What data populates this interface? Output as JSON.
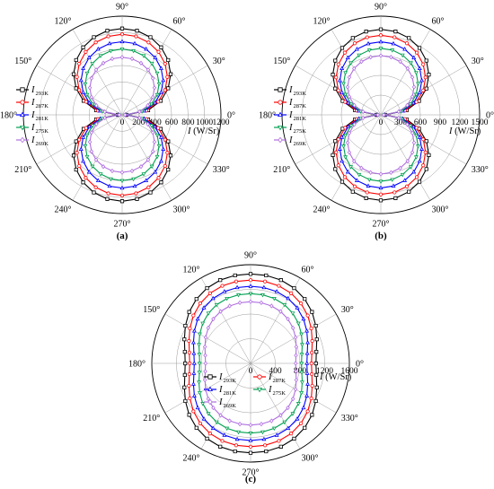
{
  "chart_data": [
    {
      "type": "polar-line",
      "panel_label": "(a)",
      "axis_label": "I (W/Sr)",
      "axis_label_parts": {
        "var": "I",
        "unit": " (W/Sr)"
      },
      "rlim": [
        0,
        1200
      ],
      "r_ticks": [
        0,
        200,
        400,
        600,
        800,
        1000,
        1200
      ],
      "angle_ticks": [
        0,
        30,
        60,
        90,
        120,
        150,
        180,
        210,
        240,
        270,
        300,
        330
      ],
      "angle_tick_labels": [
        "0°",
        "30°",
        "60°",
        "90°",
        "120°",
        "150°",
        "180°",
        "210°",
        "240°",
        "270°",
        "300°",
        "330°"
      ],
      "grid": true,
      "legend_position": "left",
      "series": [
        {
          "name": "I 293K",
          "name_parts": {
            "var": "I",
            "sub": "293K"
          },
          "color": "#000000",
          "marker": "square",
          "peak": 1050,
          "shape": "dipole"
        },
        {
          "name": "I 287K",
          "name_parts": {
            "var": "I",
            "sub": "287K"
          },
          "color": "#ff0000",
          "marker": "circle",
          "peak": 980,
          "shape": "dipole"
        },
        {
          "name": "I 281K",
          "name_parts": {
            "var": "I",
            "sub": "281K"
          },
          "color": "#0000ff",
          "marker": "triangle",
          "peak": 890,
          "shape": "dipole"
        },
        {
          "name": "I 275K",
          "name_parts": {
            "var": "I",
            "sub": "275K"
          },
          "color": "#00a050",
          "marker": "triangle-down",
          "peak": 800,
          "shape": "dipole"
        },
        {
          "name": "I 269K",
          "name_parts": {
            "var": "I",
            "sub": "269K"
          },
          "color": "#b070e0",
          "marker": "diamond",
          "peak": 700,
          "shape": "dipole"
        }
      ]
    },
    {
      "type": "polar-line",
      "panel_label": "(b)",
      "axis_label": "I (W/Sr)",
      "axis_label_parts": {
        "var": "I",
        "unit": " (W/Sr)"
      },
      "rlim": [
        0,
        1500
      ],
      "r_ticks": [
        0,
        300,
        600,
        900,
        1200,
        1500
      ],
      "angle_ticks": [
        0,
        30,
        60,
        90,
        120,
        150,
        180,
        210,
        240,
        270,
        300,
        330
      ],
      "angle_tick_labels": [
        "0°",
        "30°",
        "60°",
        "90°",
        "120°",
        "150°",
        "180°",
        "210°",
        "240°",
        "270°",
        "300°",
        "330°"
      ],
      "grid": true,
      "legend_position": "left",
      "series": [
        {
          "name": "I 293K",
          "name_parts": {
            "var": "I",
            "sub": "293K"
          },
          "color": "#000000",
          "marker": "square",
          "peak": 1300,
          "shape": "dipole"
        },
        {
          "name": "I 287K",
          "name_parts": {
            "var": "I",
            "sub": "287K"
          },
          "color": "#ff0000",
          "marker": "circle",
          "peak": 1210,
          "shape": "dipole"
        },
        {
          "name": "I 281K",
          "name_parts": {
            "var": "I",
            "sub": "281K"
          },
          "color": "#0000ff",
          "marker": "triangle",
          "peak": 1110,
          "shape": "dipole"
        },
        {
          "name": "I 275K",
          "name_parts": {
            "var": "I",
            "sub": "275K"
          },
          "color": "#00a050",
          "marker": "triangle-down",
          "peak": 1010,
          "shape": "dipole"
        },
        {
          "name": "I 269K",
          "name_parts": {
            "var": "I",
            "sub": "269K"
          },
          "color": "#b070e0",
          "marker": "diamond",
          "peak": 900,
          "shape": "dipole"
        }
      ]
    },
    {
      "type": "polar-line",
      "panel_label": "(c)",
      "axis_label": "I (W/Sr)",
      "axis_label_parts": {
        "var": "I",
        "unit": " (W/Sr)"
      },
      "rlim": [
        0,
        1600
      ],
      "r_ticks": [
        0,
        400,
        800,
        1200,
        1600
      ],
      "angle_ticks": [
        0,
        30,
        60,
        90,
        120,
        150,
        180,
        210,
        240,
        270,
        300,
        330
      ],
      "angle_tick_labels": [
        "0°",
        "30°",
        "60°",
        "90°",
        "120°",
        "150°",
        "180°",
        "210°",
        "240°",
        "270°",
        "300°",
        "330°"
      ],
      "grid": true,
      "legend_position": "center",
      "series": [
        {
          "name": "I 293K",
          "name_parts": {
            "var": "I",
            "sub": "293K"
          },
          "color": "#000000",
          "marker": "square",
          "peak": 1450,
          "shape": "rounded"
        },
        {
          "name": "I 287K",
          "name_parts": {
            "var": "I",
            "sub": "287K"
          },
          "color": "#ff0000",
          "marker": "circle",
          "peak": 1350,
          "shape": "rounded"
        },
        {
          "name": "I 281K",
          "name_parts": {
            "var": "I",
            "sub": "281K"
          },
          "color": "#0000ff",
          "marker": "triangle",
          "peak": 1250,
          "shape": "rounded"
        },
        {
          "name": "I 275K",
          "name_parts": {
            "var": "I",
            "sub": "275K"
          },
          "color": "#00a050",
          "marker": "triangle-down",
          "peak": 1130,
          "shape": "rounded"
        },
        {
          "name": "I 269K",
          "name_parts": {
            "var": "I",
            "sub": "269K"
          },
          "color": "#b070e0",
          "marker": "diamond",
          "peak": 1000,
          "shape": "rounded"
        }
      ]
    }
  ]
}
